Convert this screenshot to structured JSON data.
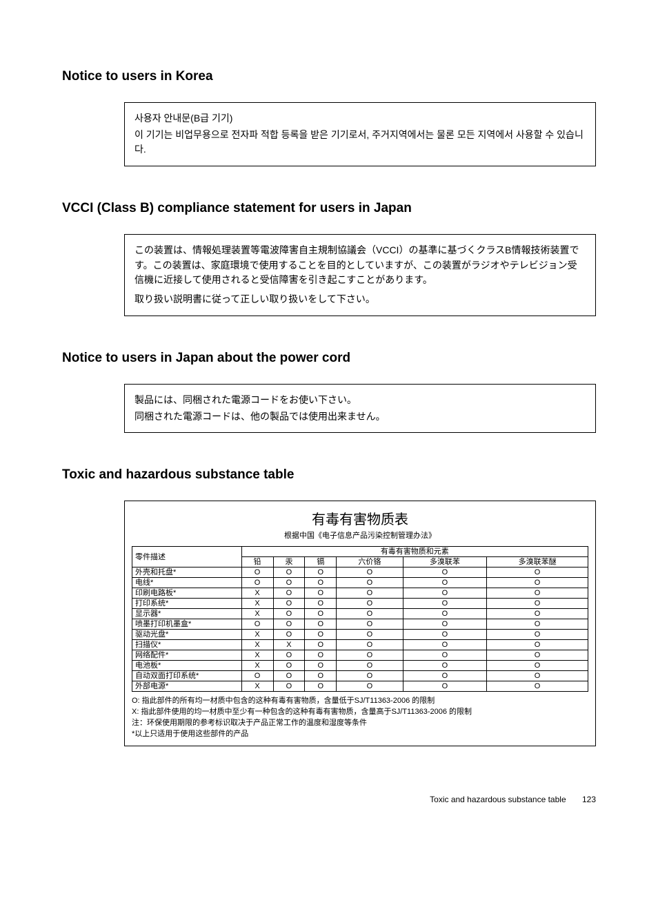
{
  "sections": {
    "korea": {
      "title": "Notice to users in Korea",
      "line1": "사용자 안내문(B급 기기)",
      "line2": "이 기기는 비업무용으로 전자파 적합 등록을 받은 기기로서, 주거지역에서는 물론 모든 지역에서 사용할 수 있습니다."
    },
    "vcci": {
      "title": "VCCI (Class B) compliance statement for users in Japan",
      "para1": "この装置は、情報処理装置等電波障害自主規制協議会（VCCI）の基準に基づくクラスB情報技術装置です。この装置は、家庭環境で使用することを目的としていますが、この装置がラジオやテレビジョン受信機に近接して使用されると受信障害を引き起こすことがあります。",
      "para2": "取り扱い説明書に従って正しい取り扱いをして下さい。"
    },
    "japan_cord": {
      "title": "Notice to users in Japan about the power cord",
      "line1": "製品には、同梱された電源コードをお使い下さい。",
      "line2": "同梱された電源コードは、他の製品では使用出来ません。"
    },
    "toxic": {
      "title": "Toxic and hazardous substance table",
      "table_title": "有毒有害物质表",
      "table_subtitle": "根据中国《电子信息产品污染控制管理办法》",
      "desc_header": "零件描述",
      "group_header": "有毒有害物质和元素",
      "columns": [
        "铅",
        "汞",
        "镉",
        "六价铬",
        "多溴联苯",
        "多溴联苯醚"
      ],
      "rows": [
        {
          "name": "外壳和托盘*",
          "vals": [
            "O",
            "O",
            "O",
            "O",
            "O",
            "O"
          ]
        },
        {
          "name": "电线*",
          "vals": [
            "O",
            "O",
            "O",
            "O",
            "O",
            "O"
          ]
        },
        {
          "name": "印刷电路板*",
          "vals": [
            "X",
            "O",
            "O",
            "O",
            "O",
            "O"
          ]
        },
        {
          "name": "打印系统*",
          "vals": [
            "X",
            "O",
            "O",
            "O",
            "O",
            "O"
          ]
        },
        {
          "name": "显示器*",
          "vals": [
            "X",
            "O",
            "O",
            "O",
            "O",
            "O"
          ]
        },
        {
          "name": "喷墨打印机墨盒*",
          "vals": [
            "O",
            "O",
            "O",
            "O",
            "O",
            "O"
          ]
        },
        {
          "name": "驱动光盘*",
          "vals": [
            "X",
            "O",
            "O",
            "O",
            "O",
            "O"
          ]
        },
        {
          "name": "扫描仪*",
          "vals": [
            "X",
            "X",
            "O",
            "O",
            "O",
            "O"
          ]
        },
        {
          "name": "网络配件*",
          "vals": [
            "X",
            "O",
            "O",
            "O",
            "O",
            "O"
          ]
        },
        {
          "name": "电池板*",
          "vals": [
            "X",
            "O",
            "O",
            "O",
            "O",
            "O"
          ]
        },
        {
          "name": "自动双面打印系统*",
          "vals": [
            "O",
            "O",
            "O",
            "O",
            "O",
            "O"
          ]
        },
        {
          "name": "外部电源*",
          "vals": [
            "X",
            "O",
            "O",
            "O",
            "O",
            "O"
          ]
        }
      ],
      "note_o": "O: 指此部件的所有均一材质中包含的这种有毒有害物质，含量低于SJ/T11363-2006 的限制",
      "note_x": "X: 指此部件使用的均一材质中至少有一种包含的这种有毒有害物质，含量高于SJ/T11363-2006 的限制",
      "note_ref": "注：环保使用期限的参考标识取决于产品正常工作的温度和湿度等条件",
      "note_star": "*以上只适用于使用这些部件的产品"
    }
  },
  "footer": {
    "label": "Toxic and hazardous substance table",
    "page": "123"
  }
}
